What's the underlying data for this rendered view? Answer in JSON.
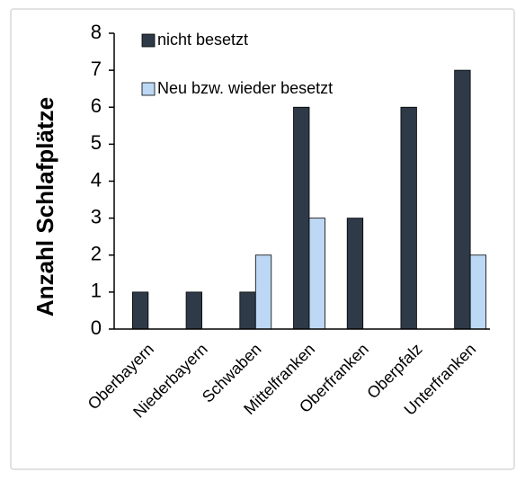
{
  "chart_data": {
    "type": "bar",
    "y_label": "Anzahl Schlafplätze",
    "categories": [
      "Oberbayern",
      "Niederbayern",
      "Schwaben",
      "Mittelfranken",
      "Oberfranken",
      "Oberpfalz",
      "Unterfranken"
    ],
    "series": [
      {
        "name": "nicht besetzt",
        "color": "#2e3a48",
        "values": [
          1,
          1,
          1,
          6,
          3,
          6,
          7
        ]
      },
      {
        "name": "Neu bzw. wieder besetzt",
        "color": "#bcd8f5",
        "values": [
          0,
          0,
          2,
          3,
          0,
          0,
          2
        ]
      }
    ],
    "ylim": [
      0,
      8
    ],
    "yticks": [
      0,
      1,
      2,
      3,
      4,
      5,
      6,
      7,
      8
    ]
  }
}
